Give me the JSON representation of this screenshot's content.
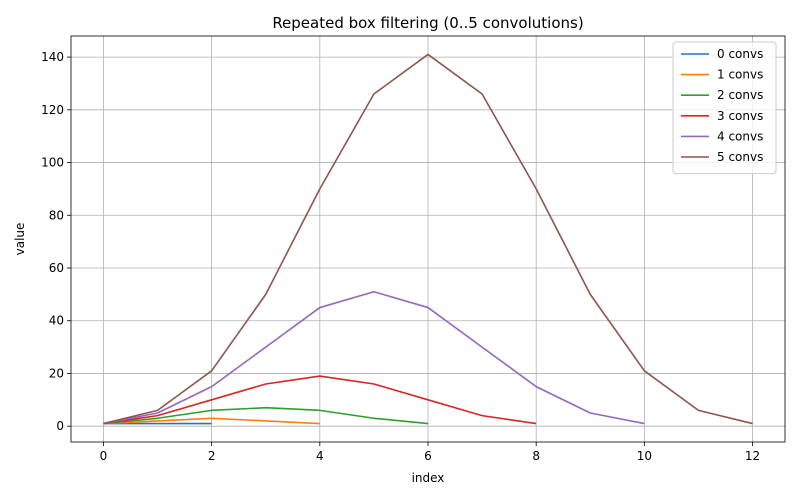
{
  "chart_data": {
    "type": "line",
    "title": "Repeated box filtering (0..5 convolutions)",
    "xlabel": "index",
    "ylabel": "value",
    "xlim": [
      -0.6,
      12.6
    ],
    "ylim": [
      -6,
      148
    ],
    "xticks": [
      0,
      2,
      4,
      6,
      8,
      10,
      12
    ],
    "yticks": [
      0,
      20,
      40,
      60,
      80,
      100,
      120,
      140
    ],
    "grid": true,
    "legend_position": "top-right",
    "series": [
      {
        "name": "0 convs",
        "color": "#1f77b4",
        "values": [
          1,
          1,
          1
        ]
      },
      {
        "name": "1 convs",
        "color": "#ff7f0e",
        "values": [
          1,
          2,
          3,
          2,
          1
        ]
      },
      {
        "name": "2 convs",
        "color": "#2ca02c",
        "values": [
          1,
          3,
          6,
          7,
          6,
          3,
          1
        ]
      },
      {
        "name": "3 convs",
        "color": "#d62728",
        "values": [
          1,
          4,
          10,
          16,
          19,
          16,
          10,
          4,
          1
        ]
      },
      {
        "name": "4 convs",
        "color": "#9467bd",
        "values": [
          1,
          5,
          15,
          30,
          45,
          51,
          45,
          30,
          15,
          5,
          1
        ]
      },
      {
        "name": "5 convs",
        "color": "#8c564b",
        "values": [
          1,
          6,
          21,
          50,
          90,
          126,
          141,
          126,
          90,
          50,
          21,
          6,
          1
        ]
      }
    ]
  }
}
